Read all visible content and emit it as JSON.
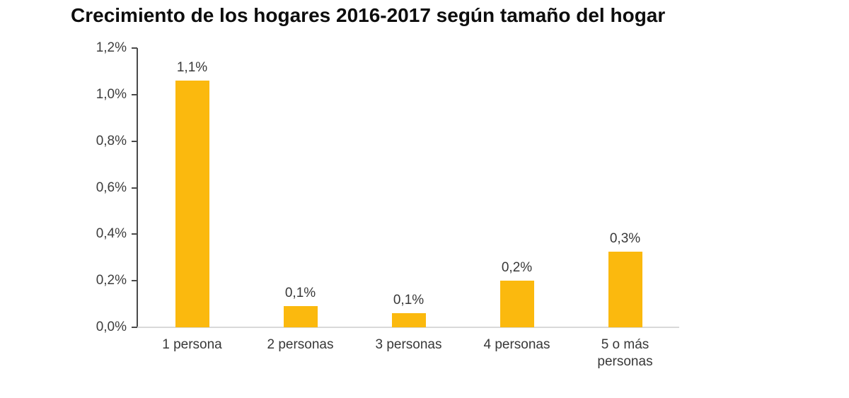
{
  "chart_data": {
    "type": "bar",
    "title": "Crecimiento de los hogares 2016-2017 según tamaño del hogar",
    "categories": [
      "1 persona",
      "2 personas",
      "3 personas",
      "4 personas",
      "5 o más personas"
    ],
    "values": [
      1.1,
      0.1,
      0.1,
      0.2,
      0.3
    ],
    "bar_labels": [
      "1,1%",
      "0,1%",
      "0,1%",
      "0,2%",
      "0,3%"
    ],
    "render_values": [
      1.06,
      0.09,
      0.06,
      0.2,
      0.325
    ],
    "y_ticks": [
      "1,2%",
      "1,0%",
      "0,8%",
      "0,6%",
      "0,4%",
      "0,2%",
      "0,0%"
    ],
    "ylim": [
      0,
      1.2
    ],
    "xlabel": "",
    "ylabel": "",
    "unit": "%",
    "grid": false,
    "legend": null
  },
  "colors": {
    "bar": "#fbb90e",
    "axis": "#4a4a4a",
    "baseline": "#d9d9d9",
    "tick_text": "#3d3d3d",
    "label_text": "#383838",
    "title_text": "#0d0d0d"
  }
}
